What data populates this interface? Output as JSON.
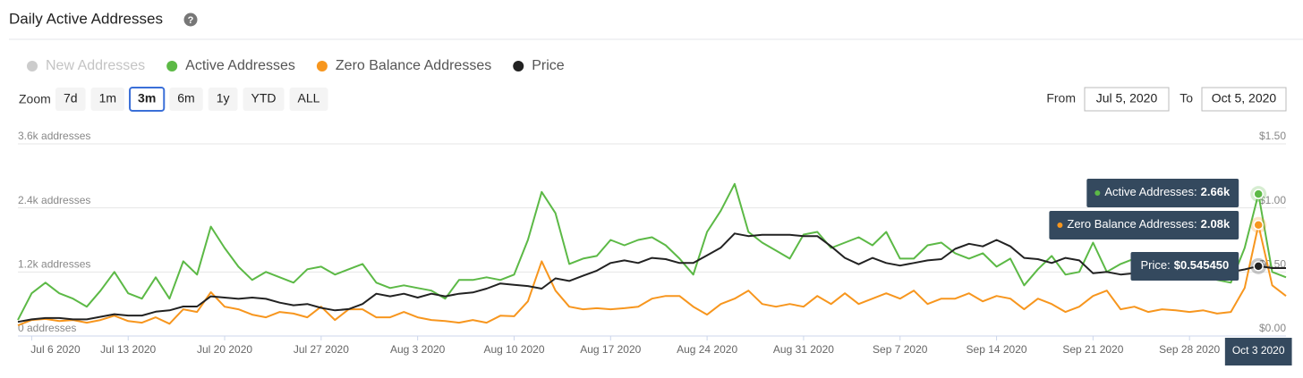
{
  "header": {
    "title": "Daily Active Addresses",
    "help": "?"
  },
  "controls": {
    "zoom_label": "Zoom",
    "zoom": [
      "7d",
      "1m",
      "3m",
      "6m",
      "1y",
      "YTD",
      "ALL"
    ],
    "zoom_active": 2,
    "from_label": "From",
    "from": "Jul 5, 2020",
    "to_label": "To",
    "to": "Oct 5, 2020"
  },
  "chart_data": {
    "type": "line",
    "hidden_series": [
      {
        "name": "New Addresses",
        "color": "#cccccc"
      }
    ],
    "x": [
      "2020-07-05",
      "2020-07-06",
      "2020-07-07",
      "2020-07-08",
      "2020-07-09",
      "2020-07-10",
      "2020-07-11",
      "2020-07-12",
      "2020-07-13",
      "2020-07-14",
      "2020-07-15",
      "2020-07-16",
      "2020-07-17",
      "2020-07-18",
      "2020-07-19",
      "2020-07-20",
      "2020-07-21",
      "2020-07-22",
      "2020-07-23",
      "2020-07-24",
      "2020-07-25",
      "2020-07-26",
      "2020-07-27",
      "2020-07-28",
      "2020-07-29",
      "2020-07-30",
      "2020-07-31",
      "2020-08-01",
      "2020-08-02",
      "2020-08-03",
      "2020-08-04",
      "2020-08-05",
      "2020-08-06",
      "2020-08-07",
      "2020-08-08",
      "2020-08-09",
      "2020-08-10",
      "2020-08-11",
      "2020-08-12",
      "2020-08-13",
      "2020-08-14",
      "2020-08-15",
      "2020-08-16",
      "2020-08-17",
      "2020-08-18",
      "2020-08-19",
      "2020-08-20",
      "2020-08-21",
      "2020-08-22",
      "2020-08-23",
      "2020-08-24",
      "2020-08-25",
      "2020-08-26",
      "2020-08-27",
      "2020-08-28",
      "2020-08-29",
      "2020-08-30",
      "2020-08-31",
      "2020-09-01",
      "2020-09-02",
      "2020-09-03",
      "2020-09-04",
      "2020-09-05",
      "2020-09-06",
      "2020-09-07",
      "2020-09-08",
      "2020-09-09",
      "2020-09-10",
      "2020-09-11",
      "2020-09-12",
      "2020-09-13",
      "2020-09-14",
      "2020-09-15",
      "2020-09-16",
      "2020-09-17",
      "2020-09-18",
      "2020-09-19",
      "2020-09-20",
      "2020-09-21",
      "2020-09-22",
      "2020-09-23",
      "2020-09-24",
      "2020-09-25",
      "2020-09-26",
      "2020-09-27",
      "2020-09-28",
      "2020-09-29",
      "2020-09-30",
      "2020-10-01",
      "2020-10-02",
      "2020-10-03",
      "2020-10-04",
      "2020-10-05"
    ],
    "series": [
      {
        "name": "Active Addresses",
        "color": "#5cb946",
        "values": [
          300,
          800,
          1000,
          800,
          700,
          550,
          850,
          1200,
          800,
          700,
          1100,
          700,
          1400,
          1150,
          2050,
          1650,
          1300,
          1050,
          1200,
          1100,
          1000,
          1250,
          1300,
          1150,
          1250,
          1350,
          1000,
          900,
          950,
          900,
          850,
          700,
          1050,
          1050,
          1100,
          1050,
          1150,
          1800,
          2700,
          2300,
          1350,
          1450,
          1500,
          1800,
          1700,
          1800,
          1850,
          1700,
          1450,
          1150,
          1950,
          2350,
          2850,
          1950,
          1750,
          1600,
          1450,
          1900,
          1950,
          1650,
          1750,
          1850,
          1700,
          1950,
          1450,
          1450,
          1700,
          1750,
          1550,
          1450,
          1550,
          1300,
          1450,
          950,
          1250,
          1500,
          1150,
          1200,
          1750,
          1200,
          1350,
          1450,
          1150,
          1300,
          1250,
          1100,
          1150,
          1050,
          1000,
          1650,
          2660,
          1200,
          1100
        ]
      },
      {
        "name": "Zero Balance Addresses",
        "color": "#f7961e",
        "values": [
          200,
          300,
          320,
          280,
          300,
          250,
          300,
          380,
          280,
          250,
          350,
          230,
          500,
          450,
          820,
          550,
          500,
          400,
          350,
          450,
          420,
          350,
          550,
          300,
          500,
          500,
          350,
          350,
          450,
          350,
          300,
          280,
          250,
          300,
          250,
          380,
          370,
          650,
          1400,
          850,
          550,
          500,
          520,
          500,
          520,
          550,
          700,
          750,
          750,
          550,
          400,
          600,
          700,
          850,
          600,
          550,
          600,
          550,
          750,
          600,
          800,
          600,
          700,
          800,
          700,
          850,
          600,
          700,
          700,
          800,
          650,
          750,
          700,
          500,
          700,
          600,
          450,
          550,
          750,
          850,
          500,
          550,
          450,
          500,
          480,
          450,
          480,
          420,
          450,
          900,
          2080,
          950,
          750
        ]
      },
      {
        "name": "Price",
        "color": "#222222",
        "axis": "y2",
        "values": [
          0.11,
          0.13,
          0.14,
          0.14,
          0.13,
          0.13,
          0.15,
          0.17,
          0.16,
          0.16,
          0.19,
          0.2,
          0.23,
          0.23,
          0.31,
          0.3,
          0.29,
          0.3,
          0.29,
          0.26,
          0.24,
          0.25,
          0.22,
          0.2,
          0.21,
          0.25,
          0.33,
          0.31,
          0.33,
          0.3,
          0.33,
          0.31,
          0.33,
          0.34,
          0.37,
          0.41,
          0.4,
          0.39,
          0.37,
          0.45,
          0.43,
          0.47,
          0.51,
          0.57,
          0.59,
          0.57,
          0.61,
          0.6,
          0.57,
          0.57,
          0.63,
          0.69,
          0.8,
          0.78,
          0.79,
          0.79,
          0.79,
          0.78,
          0.78,
          0.7,
          0.61,
          0.56,
          0.61,
          0.57,
          0.55,
          0.57,
          0.59,
          0.6,
          0.68,
          0.72,
          0.7,
          0.75,
          0.7,
          0.61,
          0.6,
          0.57,
          0.61,
          0.59,
          0.49,
          0.5,
          0.48,
          0.49,
          0.45,
          0.47,
          0.45,
          0.49,
          0.54,
          0.51,
          0.5,
          0.52,
          0.54545,
          0.53,
          0.53
        ]
      }
    ],
    "xlim": [
      "2020-07-05",
      "2020-10-05"
    ],
    "xticks": [
      {
        "value": "2020-07-06",
        "label": "Jul 6 2020"
      },
      {
        "value": "2020-07-13",
        "label": "Jul 13 2020"
      },
      {
        "value": "2020-07-20",
        "label": "Jul 20 2020"
      },
      {
        "value": "2020-07-27",
        "label": "Jul 27 2020"
      },
      {
        "value": "2020-08-03",
        "label": "Aug 3 2020"
      },
      {
        "value": "2020-08-10",
        "label": "Aug 10 2020"
      },
      {
        "value": "2020-08-17",
        "label": "Aug 17 2020"
      },
      {
        "value": "2020-08-24",
        "label": "Aug 24 2020"
      },
      {
        "value": "2020-08-31",
        "label": "Aug 31 2020"
      },
      {
        "value": "2020-09-07",
        "label": "Sep 7 2020"
      },
      {
        "value": "2020-09-14",
        "label": "Sep 14 2020"
      },
      {
        "value": "2020-09-21",
        "label": "Sep 21 2020"
      },
      {
        "value": "2020-09-28",
        "label": "Sep 28 2020"
      }
    ],
    "ylim": [
      0,
      3600
    ],
    "yticks": [
      {
        "value": 0,
        "label": "0 addresses"
      },
      {
        "value": 1200,
        "label": "1.2k addresses"
      },
      {
        "value": 2400,
        "label": "2.4k addresses"
      },
      {
        "value": 3600,
        "label": "3.6k addresses"
      }
    ],
    "y2lim": [
      0,
      1.5
    ],
    "y2ticks": [
      {
        "value": 0,
        "label": "$0.00"
      },
      {
        "value": 0.5,
        "label": "$0.50"
      },
      {
        "value": 1,
        "label": "$1.00"
      },
      {
        "value": 1.5,
        "label": "$1.50"
      }
    ],
    "grid": true,
    "tooltip": {
      "index": 90,
      "date": "Oct 3 2020",
      "items": [
        {
          "label": "Active Addresses:",
          "value": "2.66k"
        },
        {
          "label": "Zero Balance Addresses:",
          "value": "2.08k"
        },
        {
          "label": "Price:",
          "value": "$0.545450"
        }
      ]
    }
  }
}
